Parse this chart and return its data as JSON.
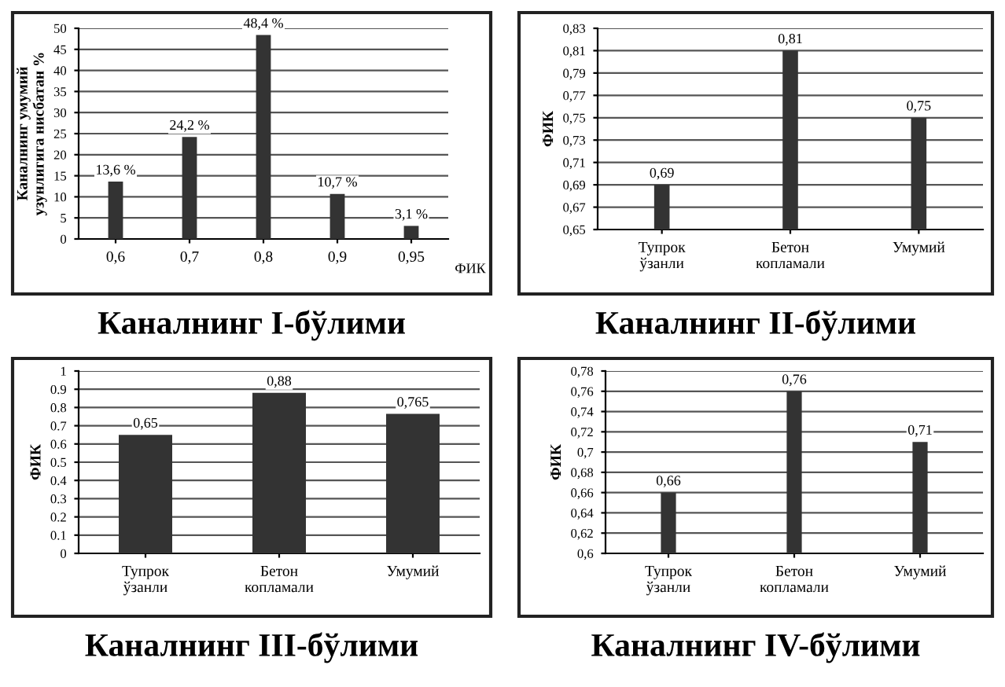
{
  "chart_data": [
    {
      "type": "bar",
      "title": "Каналнинг I-бўлими",
      "xlabel": "ФИК",
      "ylabel": "Каналнинг умумий\nузунлигига нисбатан %",
      "categories": [
        "0,6",
        "0,7",
        "0,8",
        "0,9",
        "0,95"
      ],
      "values": [
        13.6,
        24.2,
        48.4,
        10.7,
        3.1
      ],
      "value_labels": [
        "13,6 %",
        "24,2 %",
        "48,4 %",
        "10,7 %",
        "3,1 %"
      ],
      "color": "#333333",
      "ylim": [
        0,
        50
      ],
      "yticks": [
        0,
        5,
        10,
        15,
        20,
        25,
        30,
        35,
        40,
        45,
        50
      ],
      "grid": "y"
    },
    {
      "type": "bar",
      "title": "Каналнинг II-бўлими",
      "ylabel": "ФИК",
      "categories": [
        "Тупрок\nўзанли",
        "Бетон\nкопламали",
        "Умумий"
      ],
      "values": [
        0.69,
        0.81,
        0.75
      ],
      "value_labels": [
        "0,69",
        "0,81",
        "0,75"
      ],
      "color": "#333333",
      "ylim": [
        0.65,
        0.83
      ],
      "yticks": [
        {
          "value": 0.65,
          "label": "0,65"
        },
        {
          "value": 0.67,
          "label": "0,67"
        },
        {
          "value": 0.69,
          "label": "0,69"
        },
        {
          "value": 0.71,
          "label": "0,71"
        },
        {
          "value": 0.73,
          "label": "0,73"
        },
        {
          "value": 0.75,
          "label": "0,75"
        },
        {
          "value": 0.77,
          "label": "0,77"
        },
        {
          "value": 0.79,
          "label": "0,79"
        },
        {
          "value": 0.81,
          "label": "0,81"
        },
        {
          "value": 0.83,
          "label": "0,83"
        }
      ],
      "grid": "y"
    },
    {
      "type": "bar",
      "title": "Каналнинг III-бўлими",
      "ylabel": "ФИК",
      "categories": [
        "Тупрок\nўзанли",
        "Бетон\nкопламали",
        "Умумий"
      ],
      "values": [
        0.65,
        0.88,
        0.765
      ],
      "value_labels": [
        "0,65",
        "0,88",
        "0,765"
      ],
      "color": "#333333",
      "ylim": [
        0,
        1
      ],
      "yticks": [
        0,
        0.1,
        0.2,
        0.3,
        0.4,
        0.5,
        0.6,
        0.7,
        0.8,
        0.9,
        1
      ],
      "grid": "y"
    },
    {
      "type": "bar",
      "title": "Каналнинг IV-бўлими",
      "ylabel": "ФИК",
      "categories": [
        "Тупрок\nўзанли",
        "Бетон\nкопламали",
        "Умумий"
      ],
      "values": [
        0.66,
        0.76,
        0.71
      ],
      "value_labels": [
        "0,66",
        "0,76",
        "0,71"
      ],
      "color": "#333333",
      "ylim": [
        0.6,
        0.78
      ],
      "yticks": [
        {
          "value": 0.6,
          "label": "0,6"
        },
        {
          "value": 0.62,
          "label": "0,62"
        },
        {
          "value": 0.64,
          "label": "0,64"
        },
        {
          "value": 0.66,
          "label": "0,66"
        },
        {
          "value": 0.68,
          "label": "0,68"
        },
        {
          "value": 0.7,
          "label": "0,7"
        },
        {
          "value": 0.72,
          "label": "0,72"
        },
        {
          "value": 0.74,
          "label": "0,74"
        },
        {
          "value": 0.76,
          "label": "0,76"
        },
        {
          "value": 0.78,
          "label": "0,78"
        }
      ],
      "grid": "y"
    }
  ]
}
